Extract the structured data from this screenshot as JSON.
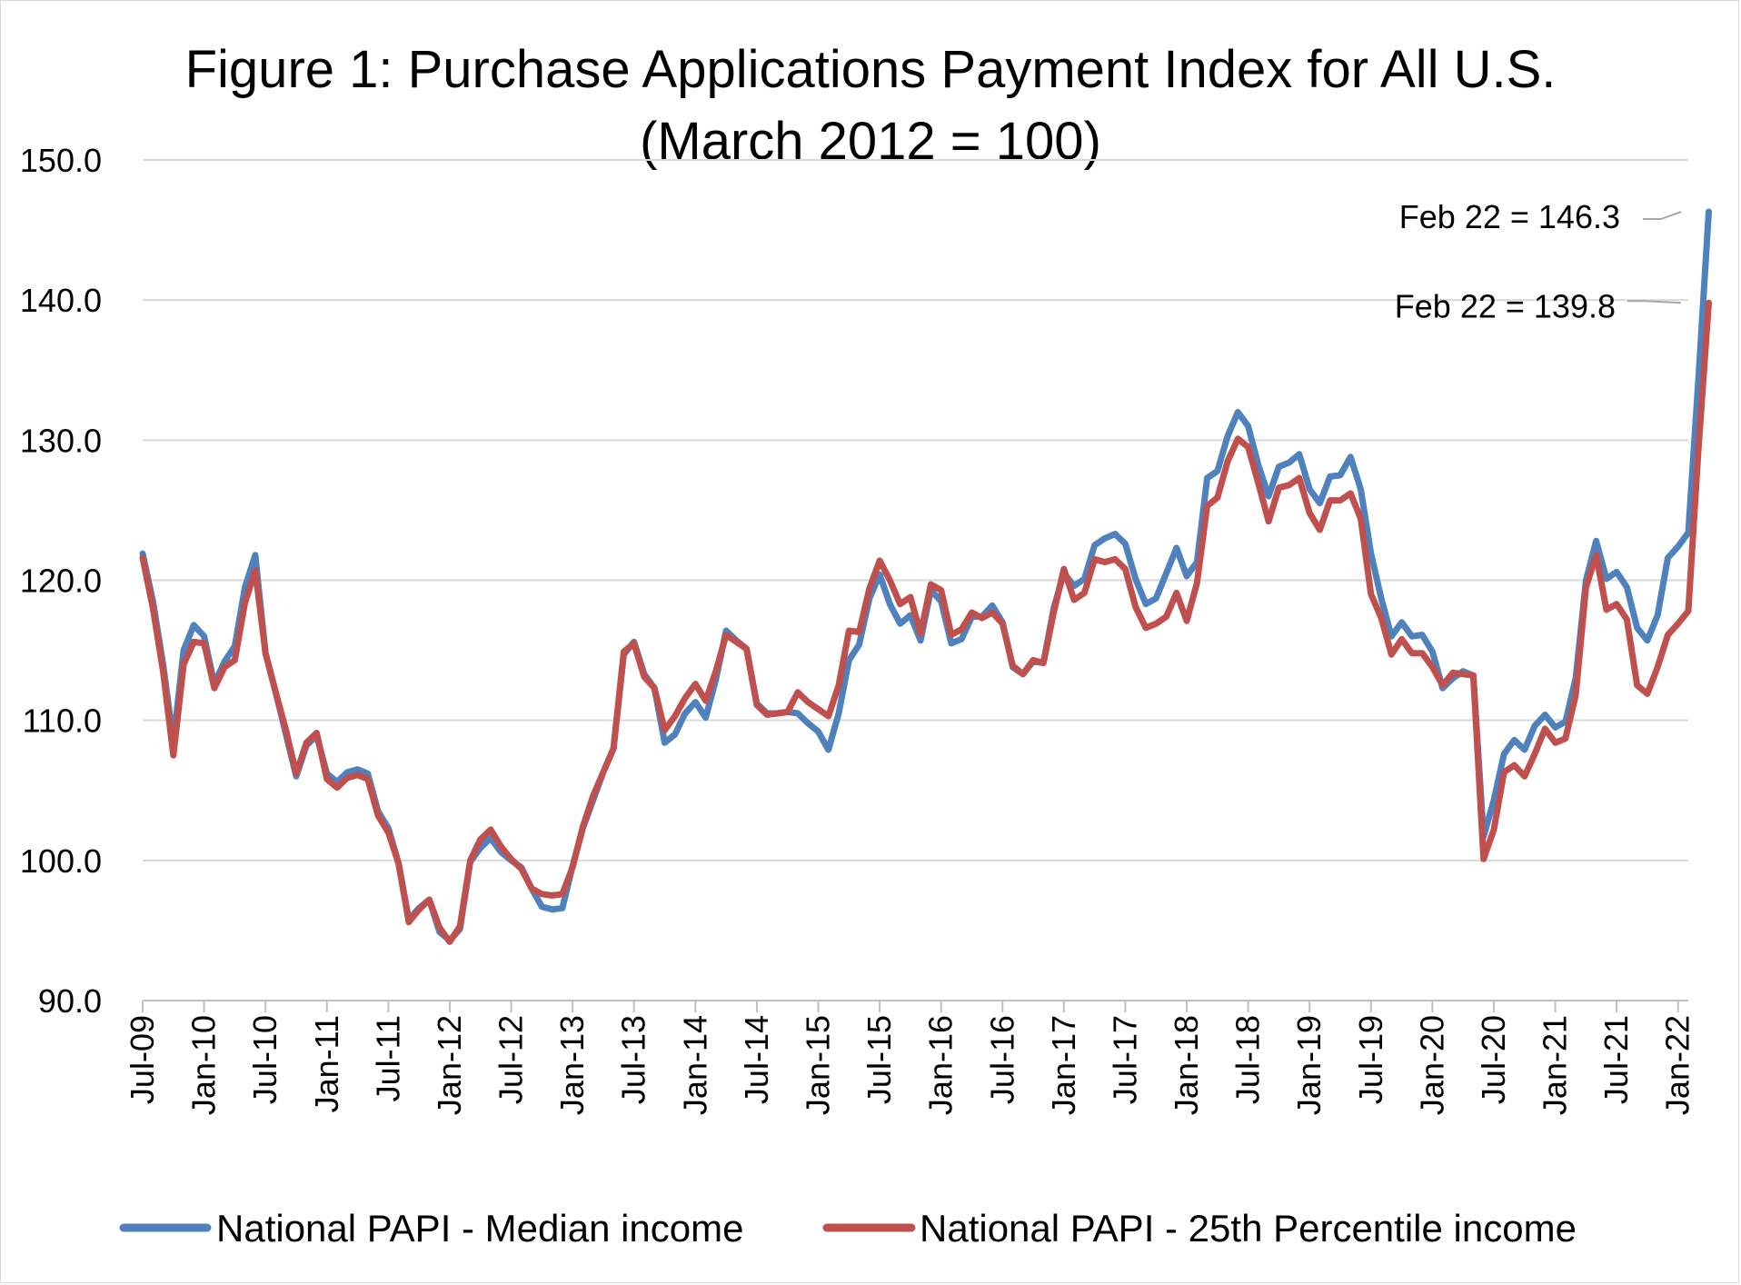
{
  "chart_data": {
    "type": "line",
    "title_lines": [
      "Figure 1: Purchase Applications Payment Index for All U.S.",
      "(March 2012 = 100)"
    ],
    "xlabel": "",
    "ylabel": "",
    "ylim": [
      90,
      150
    ],
    "y_ticks": [
      "90.0",
      "100.0",
      "110.0",
      "120.0",
      "130.0",
      "140.0",
      "150.0"
    ],
    "x_start": "2009-07",
    "x_end": "2022-02",
    "x_tick_labels": [
      "Jul-09",
      "Jan-10",
      "Jul-10",
      "Jan-11",
      "Jul-11",
      "Jan-12",
      "Jul-12",
      "Jan-13",
      "Jul-13",
      "Jan-14",
      "Jul-14",
      "Jan-15",
      "Jul-15",
      "Jan-16",
      "Jul-16",
      "Jan-17",
      "Jul-17",
      "Jan-18",
      "Jul-18",
      "Jan-19",
      "Jul-19",
      "Jan-20",
      "Jul-20",
      "Jan-21",
      "Jul-21",
      "Jan-22"
    ],
    "grid": true,
    "legend_position": "bottom",
    "series": [
      {
        "name": "National PAPI - Median income",
        "color": "#4F81BD",
        "values": [
          121.9,
          118.5,
          114,
          108.5,
          115,
          116.8,
          116,
          112.6,
          114.2,
          115.3,
          119.5,
          121.8,
          114.8,
          112,
          109,
          106,
          108.2,
          108.9,
          106.2,
          105.6,
          106.3,
          106.5,
          106.2,
          103.5,
          102.3,
          99.8,
          95.8,
          96.6,
          97.2,
          94.9,
          94.3,
          95.1,
          99.9,
          100.9,
          101.6,
          100.6,
          100,
          99.5,
          98,
          96.7,
          96.5,
          96.6,
          99.6,
          102.3,
          104.3,
          106.3,
          108,
          114.7,
          115.6,
          113.3,
          112.3,
          108.4,
          109,
          110.5,
          111.3,
          110.2,
          112.9,
          116.4,
          115.7,
          115.1,
          111.2,
          110.5,
          110.5,
          110.6,
          110.5,
          109.8,
          109.2,
          107.9,
          110.5,
          114.3,
          115.4,
          118.7,
          120.4,
          118.3,
          116.9,
          117.5,
          115.7,
          119.3,
          118.5,
          115.5,
          115.8,
          117.4,
          117.4,
          118.2,
          117,
          113.8,
          113.3,
          114.2,
          114.1,
          118,
          120.5,
          119.6,
          120.1,
          122.5,
          123,
          123.3,
          122.6,
          120.1,
          118.3,
          118.7,
          120.5,
          122.3,
          120.3,
          121.3,
          127.3,
          127.8,
          130.3,
          132,
          131,
          128.2,
          126,
          128.1,
          128.4,
          129,
          126.5,
          125.5,
          127.4,
          127.5,
          128.8,
          126.5,
          121.9,
          118.7,
          116,
          117,
          116,
          116.1,
          114.9,
          112.3,
          113,
          113.5,
          113.2,
          101.7,
          104.3,
          107.6,
          108.6,
          107.9,
          109.6,
          110.4,
          109.5,
          109.9,
          113,
          120,
          122.8,
          120.1,
          120.6,
          119.5,
          116.6,
          115.7,
          117.5,
          121.6,
          122.4,
          123.4,
          134.5,
          146.3
        ]
      },
      {
        "name": "National PAPI - 25th Percentile income",
        "color": "#C0504D",
        "values": [
          121.6,
          118,
          113.5,
          107.5,
          114,
          115.6,
          115.5,
          112.3,
          113.8,
          114.3,
          118.4,
          120.7,
          114.8,
          112,
          109.3,
          106.2,
          108.4,
          109.1,
          105.8,
          105.2,
          105.9,
          106.1,
          105.8,
          103.2,
          102,
          99.8,
          95.6,
          96.5,
          97.2,
          95.2,
          94.2,
          95.3,
          100,
          101.5,
          102.2,
          101,
          100.1,
          99.4,
          98,
          97.6,
          97.5,
          97.6,
          99.5,
          102.4,
          104.6,
          106.3,
          108,
          114.9,
          115.5,
          113.1,
          112.3,
          109.3,
          110.3,
          111.6,
          112.6,
          111.4,
          113.5,
          116.1,
          115.6,
          115.1,
          111.1,
          110.4,
          110.5,
          110.6,
          112,
          111.3,
          110.8,
          110.3,
          112.5,
          116.4,
          116.3,
          119.4,
          121.4,
          120,
          118.3,
          118.8,
          116.2,
          119.7,
          119.3,
          116.1,
          116.5,
          117.7,
          117.3,
          117.7,
          116.9,
          113.9,
          113.3,
          114.3,
          114.1,
          117.7,
          120.8,
          118.6,
          119.1,
          121.5,
          121.3,
          121.5,
          120.8,
          118.1,
          116.6,
          116.9,
          117.4,
          119.1,
          117.1,
          119.8,
          125.3,
          125.9,
          128.5,
          130.1,
          129.5,
          126.9,
          124.2,
          126.6,
          126.8,
          127.3,
          124.8,
          123.6,
          125.7,
          125.7,
          126.2,
          124.4,
          119,
          117.3,
          114.7,
          115.8,
          114.8,
          114.8,
          113.8,
          112.5,
          113.4,
          113.3,
          113.2,
          100.1,
          102.2,
          106.3,
          106.8,
          106,
          107.6,
          109.4,
          108.4,
          108.7,
          111.8,
          119.5,
          121.8,
          117.9,
          118.3,
          117.2,
          112.5,
          111.9,
          113.8,
          116.1,
          116.9,
          117.8,
          129.5,
          139.8
        ]
      }
    ],
    "annotations": [
      {
        "text": "Feb 22 = 146.3",
        "series": 0,
        "x": "2022-02",
        "y": 146.3
      },
      {
        "text": "Feb 22 = 139.8",
        "series": 1,
        "x": "2022-02",
        "y": 139.8
      }
    ]
  }
}
